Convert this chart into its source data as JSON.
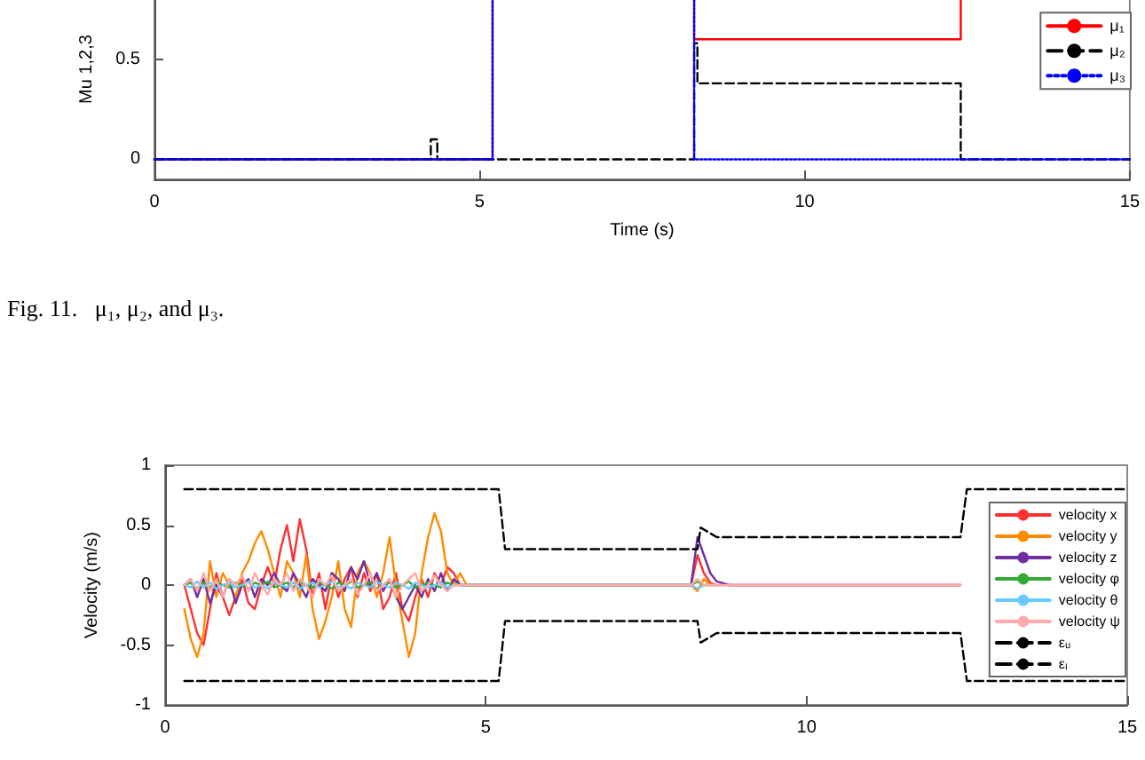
{
  "chart_data": [
    {
      "type": "step",
      "xlabel": "Time (s)",
      "ylabel": "Mu 1,2,3",
      "xlim": [
        0,
        15
      ],
      "xticks": [
        0,
        5,
        10,
        15
      ],
      "ylim": [
        -0.1,
        1
      ],
      "yticks": [
        0,
        0.5
      ],
      "legend": "top right",
      "grid": false,
      "annotations": [
        "Fig. 11.   μ₁, μ₂, and μ₃."
      ],
      "series": [
        {
          "name": "μ₁",
          "color": "#ff0000",
          "line_style": "solid",
          "x": [
            0,
            5.2,
            8.3,
            12.4
          ],
          "values": [
            0,
            1,
            0.6,
            1
          ]
        },
        {
          "name": "μ₂",
          "color": "#000000",
          "line_style": "dashed",
          "x": [
            0,
            4.25,
            4.35,
            8.3,
            8.35,
            12.4,
            15
          ],
          "values": [
            0,
            0.1,
            0,
            0.58,
            0.38,
            0,
            0
          ]
        },
        {
          "name": "μ₃",
          "color": "#0000ff",
          "line_style": "dotted",
          "x": [
            0,
            5.2,
            8.3,
            15
          ],
          "values": [
            0,
            1,
            0,
            0
          ]
        }
      ]
    },
    {
      "type": "line",
      "ylabel": "Velocity (m/s)",
      "xlim": [
        0,
        15
      ],
      "xticks": [
        0,
        5,
        10,
        15
      ],
      "ylim": [
        -1,
        1
      ],
      "yticks": [
        -1,
        -0.5,
        0,
        0.5,
        1
      ],
      "legend": "right",
      "grid": false,
      "x": [
        0.3,
        0.4,
        0.5,
        0.6,
        0.7,
        0.8,
        0.9,
        1.0,
        1.1,
        1.2,
        1.3,
        1.4,
        1.5,
        1.6,
        1.7,
        1.8,
        1.9,
        2.0,
        2.1,
        2.2,
        2.3,
        2.4,
        2.5,
        2.6,
        2.7,
        2.8,
        2.9,
        3.0,
        3.1,
        3.2,
        3.3,
        3.4,
        3.5,
        3.6,
        3.7,
        3.8,
        3.9,
        4.0,
        4.1,
        4.2,
        4.3,
        4.4,
        4.5,
        4.6,
        4.7,
        5.0,
        8.2,
        8.3,
        8.4,
        8.5,
        8.6,
        8.8,
        12.4
      ],
      "series": [
        {
          "name": "velocity x",
          "color": "#ff3030",
          "values": [
            0,
            -0.2,
            -0.4,
            -0.5,
            -0.2,
            0.1,
            -0.1,
            -0.25,
            -0.1,
            0.05,
            -0.15,
            -0.2,
            0,
            0.15,
            0,
            0.3,
            0.5,
            0.2,
            0.55,
            0.3,
            -0.1,
            0.1,
            -0.2,
            0.1,
            -0.1,
            0.05,
            0.15,
            -0.1,
            0.1,
            -0.05,
            0.1,
            -0.2,
            -0.1,
            0.1,
            -0.2,
            -0.3,
            -0.1,
            0.05,
            -0.1,
            0.1,
            0,
            0.15,
            0.1,
            0,
            0,
            0,
            0,
            0.25,
            0.1,
            0.02,
            0,
            0,
            0
          ]
        },
        {
          "name": "velocity y",
          "color": "#ff8c00",
          "values": [
            -0.2,
            -0.45,
            -0.6,
            -0.4,
            0.2,
            -0.1,
            0.1,
            0,
            -0.1,
            0.1,
            0.2,
            0.35,
            0.45,
            0.3,
            0.1,
            -0.1,
            0.2,
            0.1,
            -0.1,
            0.25,
            -0.2,
            -0.45,
            -0.3,
            -0.1,
            0.2,
            -0.2,
            -0.35,
            0.1,
            0.2,
            0.1,
            -0.1,
            0.1,
            0.4,
            0,
            -0.3,
            -0.6,
            -0.4,
            0.1,
            0.4,
            0.6,
            0.45,
            0.1,
            0,
            0.1,
            0,
            0,
            0,
            -0.05,
            0.05,
            0,
            0,
            null,
            null
          ]
        },
        {
          "name": "velocity z",
          "color": "#7030a0",
          "values": [
            0,
            0.05,
            -0.1,
            0.05,
            -0.15,
            0,
            -0.1,
            0.05,
            -0.15,
            0,
            0.05,
            -0.1,
            0.05,
            0,
            0.1,
            0,
            -0.05,
            0.1,
            0,
            -0.1,
            0.05,
            0,
            -0.05,
            0.1,
            0.05,
            -0.05,
            0.15,
            0.05,
            0.2,
            0,
            0.1,
            -0.05,
            0.05,
            -0.1,
            -0.2,
            -0.1,
            0,
            -0.1,
            0.05,
            -0.05,
            0.1,
            -0.05,
            0.05,
            0,
            0,
            0,
            0,
            0.4,
            0.25,
            0.1,
            0.03,
            0,
            0
          ]
        },
        {
          "name": "velocity φ",
          "color": "#33aa33",
          "values": [
            0,
            0.02,
            -0.03,
            0.02,
            -0.02,
            0.03,
            0,
            -0.02,
            0.02,
            0,
            -0.03,
            0.02,
            0,
            0.03,
            -0.02,
            0,
            0.02,
            -0.02,
            0.03,
            0,
            -0.02,
            0.02,
            0,
            -0.03,
            0.02,
            0,
            0.03,
            -0.02,
            0,
            0.02,
            -0.03,
            0,
            0.02,
            -0.02,
            0,
            0.03,
            -0.02,
            0,
            0.02,
            0,
            -0.02,
            0.02,
            0,
            0,
            0,
            0,
            0,
            0.03,
            0,
            0,
            null,
            null,
            null
          ]
        },
        {
          "name": "velocity θ",
          "color": "#66ccff",
          "values": [
            0,
            -0.02,
            0.03,
            -0.02,
            0.02,
            -0.03,
            0,
            0.02,
            -0.02,
            0,
            0.03,
            -0.02,
            0,
            -0.03,
            0.02,
            0,
            -0.02,
            0.02,
            -0.03,
            0,
            0.02,
            -0.02,
            0,
            0.03,
            -0.02,
            0,
            -0.03,
            0.02,
            0,
            -0.02,
            0.03,
            0,
            -0.02,
            0.02,
            0,
            -0.03,
            0.02,
            0,
            -0.02,
            0,
            0.02,
            -0.02,
            0,
            0,
            0,
            0,
            0,
            -0.03,
            0,
            0,
            0,
            null,
            null
          ]
        },
        {
          "name": "velocity ψ",
          "color": "#ffaaaa",
          "values": [
            0,
            0.05,
            -0.05,
            0.1,
            -0.05,
            0.05,
            -0.1,
            0.05,
            0,
            0.08,
            -0.05,
            0.1,
            0,
            -0.08,
            0.05,
            0,
            0.1,
            -0.05,
            0.05,
            0,
            -0.1,
            0.05,
            0,
            0.08,
            -0.05,
            0,
            0.05,
            -0.08,
            0,
            0.1,
            -0.05,
            0,
            0.05,
            -0.1,
            0,
            0.05,
            0.1,
            -0.05,
            0,
            0.08,
            0,
            -0.05,
            0,
            0,
            0,
            0,
            0,
            0.05,
            0,
            0,
            0,
            0,
            0
          ]
        },
        {
          "name": "εᵤ",
          "color": "#000000",
          "line_style": "dashed",
          "x": [
            0.3,
            5.2,
            5.3,
            8.3,
            8.35,
            8.6,
            12.4,
            12.5,
            15
          ],
          "values": [
            0.8,
            0.8,
            0.3,
            0.3,
            0.48,
            0.4,
            0.4,
            0.8,
            0.8
          ]
        },
        {
          "name": "εₗ",
          "color": "#000000",
          "line_style": "dashed",
          "x": [
            0.3,
            5.2,
            5.3,
            8.3,
            8.35,
            8.6,
            12.4,
            12.5,
            15
          ],
          "values": [
            -0.8,
            -0.8,
            -0.3,
            -0.3,
            -0.48,
            -0.4,
            -0.4,
            -0.8,
            -0.8
          ]
        }
      ]
    }
  ]
}
